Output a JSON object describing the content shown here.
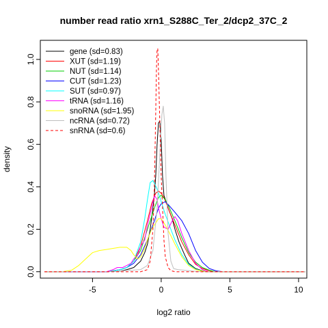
{
  "chart_data": {
    "type": "line",
    "title": "number read ratio xrn1_S288C_Ter_2/dcp2_37C_2",
    "xlabel": "log2 ratio",
    "ylabel": "density",
    "xlim": [
      -8.8,
      10.6
    ],
    "ylim": [
      -0.03,
      1.09
    ],
    "xticks": [
      -5,
      0,
      5,
      10
    ],
    "xtick_labels": [
      "-5",
      "0",
      "5",
      "10"
    ],
    "yticks": [
      0.0,
      0.2,
      0.4,
      0.6,
      0.8,
      1.0
    ],
    "ytick_labels": [
      "0.0",
      "0.2",
      "0.4",
      "0.6",
      "0.8",
      "1.0"
    ],
    "grid": false,
    "legend_position": "top-left",
    "series": [
      {
        "name": "gene (sd=0.83)",
        "color": "#000000",
        "dash": "solid",
        "points": [
          [
            -8.5,
            0
          ],
          [
            -4,
            0
          ],
          [
            -3,
            0.003
          ],
          [
            -2.5,
            0.01
          ],
          [
            -2,
            0.02
          ],
          [
            -1.5,
            0.05
          ],
          [
            -1.2,
            0.09
          ],
          [
            -1,
            0.13
          ],
          [
            -0.8,
            0.2
          ],
          [
            -0.6,
            0.3
          ],
          [
            -0.5,
            0.36
          ],
          [
            -0.4,
            0.45
          ],
          [
            -0.3,
            0.6
          ],
          [
            -0.2,
            0.7
          ],
          [
            -0.1,
            0.71
          ],
          [
            0,
            0.62
          ],
          [
            0.1,
            0.45
          ],
          [
            0.2,
            0.36
          ],
          [
            0.3,
            0.34
          ],
          [
            0.5,
            0.3
          ],
          [
            0.8,
            0.25
          ],
          [
            1,
            0.2
          ],
          [
            1.3,
            0.14
          ],
          [
            1.7,
            0.08
          ],
          [
            2,
            0.04
          ],
          [
            2.5,
            0.015
          ],
          [
            3,
            0.004
          ],
          [
            3.5,
            0
          ],
          [
            10.5,
            0
          ]
        ]
      },
      {
        "name": "XUT (sd=1.19)",
        "color": "#ff0000",
        "dash": "solid",
        "points": [
          [
            -8.5,
            0
          ],
          [
            -4,
            0
          ],
          [
            -3.5,
            0.005
          ],
          [
            -3,
            0.01
          ],
          [
            -2.5,
            0.02
          ],
          [
            -2,
            0.05
          ],
          [
            -1.5,
            0.12
          ],
          [
            -1,
            0.24
          ],
          [
            -0.7,
            0.32
          ],
          [
            -0.4,
            0.37
          ],
          [
            -0.2,
            0.38
          ],
          [
            0,
            0.37
          ],
          [
            0.2,
            0.35
          ],
          [
            0.5,
            0.3
          ],
          [
            1,
            0.22
          ],
          [
            1.5,
            0.14
          ],
          [
            2,
            0.08
          ],
          [
            2.5,
            0.035
          ],
          [
            3,
            0.015
          ],
          [
            3.5,
            0.005
          ],
          [
            4,
            0
          ],
          [
            10.5,
            0
          ]
        ]
      },
      {
        "name": "NUT (sd=1.14)",
        "color": "#00cc00",
        "dash": "solid",
        "points": [
          [
            -8.5,
            0
          ],
          [
            -4,
            0
          ],
          [
            -3.5,
            0.004
          ],
          [
            -3,
            0.01
          ],
          [
            -2.5,
            0.02
          ],
          [
            -2,
            0.05
          ],
          [
            -1.5,
            0.1
          ],
          [
            -1,
            0.2
          ],
          [
            -0.5,
            0.3
          ],
          [
            -0.2,
            0.35
          ],
          [
            0,
            0.36
          ],
          [
            0.3,
            0.34
          ],
          [
            0.6,
            0.3
          ],
          [
            1,
            0.24
          ],
          [
            1.5,
            0.16
          ],
          [
            2,
            0.09
          ],
          [
            2.5,
            0.045
          ],
          [
            3,
            0.02
          ],
          [
            3.5,
            0.007
          ],
          [
            4,
            0
          ],
          [
            10.5,
            0
          ]
        ]
      },
      {
        "name": "CUT (sd=1.23)",
        "color": "#0000ff",
        "dash": "solid",
        "points": [
          [
            -8.5,
            0
          ],
          [
            -4,
            0
          ],
          [
            -3.5,
            0.004
          ],
          [
            -3,
            0.01
          ],
          [
            -2.5,
            0.02
          ],
          [
            -2,
            0.04
          ],
          [
            -1.5,
            0.08
          ],
          [
            -1,
            0.15
          ],
          [
            -0.5,
            0.24
          ],
          [
            -0.2,
            0.3
          ],
          [
            0,
            0.32
          ],
          [
            0.3,
            0.33
          ],
          [
            0.6,
            0.31
          ],
          [
            1,
            0.28
          ],
          [
            1.5,
            0.24
          ],
          [
            2,
            0.18
          ],
          [
            2.5,
            0.1
          ],
          [
            3,
            0.045
          ],
          [
            3.5,
            0.015
          ],
          [
            4,
            0.004
          ],
          [
            4.5,
            0
          ],
          [
            10.5,
            0
          ]
        ]
      },
      {
        "name": "SUT (sd=0.97)",
        "color": "#00ffff",
        "dash": "solid",
        "points": [
          [
            -8.5,
            0
          ],
          [
            -4,
            0
          ],
          [
            -3.5,
            0.004
          ],
          [
            -3,
            0.01
          ],
          [
            -2.5,
            0.02
          ],
          [
            -2,
            0.05
          ],
          [
            -1.5,
            0.14
          ],
          [
            -1.2,
            0.25
          ],
          [
            -1,
            0.34
          ],
          [
            -0.8,
            0.42
          ],
          [
            -0.6,
            0.43
          ],
          [
            -0.3,
            0.39
          ],
          [
            0,
            0.33
          ],
          [
            0.3,
            0.27
          ],
          [
            0.7,
            0.2
          ],
          [
            1,
            0.15
          ],
          [
            1.5,
            0.08
          ],
          [
            2,
            0.035
          ],
          [
            2.5,
            0.012
          ],
          [
            3,
            0.003
          ],
          [
            3.5,
            0
          ],
          [
            10.5,
            0
          ]
        ]
      },
      {
        "name": "tRNA (sd=1.16)",
        "color": "#ff00ff",
        "dash": "solid",
        "points": [
          [
            -8.5,
            0
          ],
          [
            -4,
            0
          ],
          [
            -3.5,
            0.01
          ],
          [
            -3.2,
            0.02
          ],
          [
            -3,
            0.02
          ],
          [
            -2.8,
            0.02
          ],
          [
            -2.5,
            0.03
          ],
          [
            -2.2,
            0.04
          ],
          [
            -2,
            0.06
          ],
          [
            -1.7,
            0.08
          ],
          [
            -1.5,
            0.12
          ],
          [
            -1.2,
            0.15
          ],
          [
            -1,
            0.22
          ],
          [
            -0.7,
            0.3
          ],
          [
            -0.5,
            0.36
          ],
          [
            -0.3,
            0.34
          ],
          [
            -0.2,
            0.3
          ],
          [
            0,
            0.25
          ],
          [
            0.2,
            0.21
          ],
          [
            0.5,
            0.2
          ],
          [
            0.8,
            0.24
          ],
          [
            1,
            0.26
          ],
          [
            1.2,
            0.24
          ],
          [
            1.5,
            0.18
          ],
          [
            2,
            0.1
          ],
          [
            2.5,
            0.04
          ],
          [
            3,
            0.01
          ],
          [
            3.5,
            0
          ],
          [
            10.5,
            0
          ]
        ]
      },
      {
        "name": "snoRNA (sd=1.95)",
        "color": "#ffff00",
        "dash": "solid",
        "points": [
          [
            -8.5,
            0
          ],
          [
            -7.2,
            0
          ],
          [
            -6.5,
            0.008
          ],
          [
            -6,
            0.03
          ],
          [
            -5.5,
            0.06
          ],
          [
            -5,
            0.09
          ],
          [
            -4.5,
            0.1
          ],
          [
            -4,
            0.105
          ],
          [
            -3.5,
            0.11
          ],
          [
            -3,
            0.115
          ],
          [
            -2.5,
            0.115
          ],
          [
            -2.2,
            0.1
          ],
          [
            -2,
            0.08
          ],
          [
            -1.7,
            0.06
          ],
          [
            -1.5,
            0.07
          ],
          [
            -1.2,
            0.11
          ],
          [
            -1,
            0.15
          ],
          [
            -0.7,
            0.2
          ],
          [
            -0.4,
            0.23
          ],
          [
            -0.2,
            0.25
          ],
          [
            0,
            0.25
          ],
          [
            0.3,
            0.22
          ],
          [
            0.7,
            0.17
          ],
          [
            1,
            0.13
          ],
          [
            1.5,
            0.07
          ],
          [
            2,
            0.03
          ],
          [
            2.5,
            0.01
          ],
          [
            3,
            0.003
          ],
          [
            3.5,
            0
          ],
          [
            10.5,
            0
          ]
        ]
      },
      {
        "name": "ncRNA (sd=0.72)",
        "color": "#bebebe",
        "dash": "solid",
        "points": [
          [
            -8.5,
            0
          ],
          [
            -4,
            0
          ],
          [
            -3,
            0.003
          ],
          [
            -2.5,
            0.006
          ],
          [
            -2,
            0.008
          ],
          [
            -1.5,
            0.01
          ],
          [
            -1,
            0.03
          ],
          [
            -0.6,
            0.1
          ],
          [
            -0.3,
            0.3
          ],
          [
            -0.1,
            0.55
          ],
          [
            0.05,
            0.74
          ],
          [
            0.15,
            0.78
          ],
          [
            0.25,
            0.7
          ],
          [
            0.35,
            0.45
          ],
          [
            0.5,
            0.18
          ],
          [
            0.7,
            0.05
          ],
          [
            0.9,
            0.015
          ],
          [
            1.2,
            0.01
          ],
          [
            1.6,
            0.008
          ],
          [
            2,
            0.005
          ],
          [
            2.5,
            0.002
          ],
          [
            3,
            0
          ],
          [
            10.5,
            0
          ]
        ]
      },
      {
        "name": "snRNA (sd=0.6)",
        "color": "#ff0000",
        "dash": "dashed",
        "points": [
          [
            -8.5,
            0
          ],
          [
            -2.5,
            0
          ],
          [
            -1.5,
            0
          ],
          [
            -1,
            0.01
          ],
          [
            -0.8,
            0.05
          ],
          [
            -0.6,
            0.2
          ],
          [
            -0.5,
            0.4
          ],
          [
            -0.4,
            0.75
          ],
          [
            -0.35,
            0.95
          ],
          [
            -0.3,
            1.05
          ],
          [
            -0.25,
            1.05
          ],
          [
            -0.2,
            0.95
          ],
          [
            -0.1,
            0.7
          ],
          [
            0,
            0.45
          ],
          [
            0.1,
            0.3
          ],
          [
            0.2,
            0.15
          ],
          [
            0.3,
            0.07
          ],
          [
            0.5,
            0.02
          ],
          [
            0.7,
            0.005
          ],
          [
            1,
            0
          ],
          [
            10.5,
            0
          ]
        ]
      }
    ]
  }
}
